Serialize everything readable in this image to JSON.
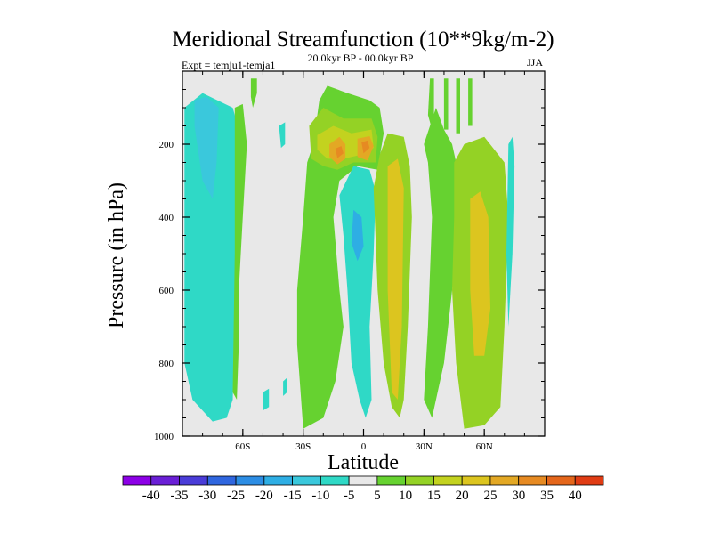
{
  "chart_data": {
    "type": "contour",
    "title": "Meridional Streamfunction (10**9kg/m-2)",
    "left_annotation": "Expt = temju1-temja1",
    "center_annotation": "20.0kyr BP - 00.0kyr BP",
    "right_annotation": "JJA",
    "xlabel": "Latitude",
    "ylabel": "Pressure (in hPa)",
    "xlim": [
      -90,
      90
    ],
    "ylim": [
      0,
      1000
    ],
    "y_inverted": true,
    "x_ticks": [
      {
        "value": -60,
        "label": "60S"
      },
      {
        "value": -30,
        "label": "30S"
      },
      {
        "value": 0,
        "label": "0"
      },
      {
        "value": 30,
        "label": "30N"
      },
      {
        "value": 60,
        "label": "60N"
      }
    ],
    "y_ticks": [
      {
        "value": 200,
        "label": "200"
      },
      {
        "value": 400,
        "label": "400"
      },
      {
        "value": 600,
        "label": "600"
      },
      {
        "value": 800,
        "label": "800"
      },
      {
        "value": 1000,
        "label": "1000"
      }
    ],
    "background_color": "#e8e8e8",
    "colorbar": {
      "levels": [
        -40,
        -35,
        -30,
        -25,
        -20,
        -15,
        -10,
        -5,
        5,
        10,
        15,
        20,
        25,
        30,
        35,
        40
      ],
      "labels": [
        "-40",
        "-35",
        "-30",
        "-25",
        "-20",
        "-15",
        "-10",
        "-5",
        "5",
        "10",
        "15",
        "20",
        "25",
        "30",
        "35",
        "40"
      ],
      "colors": [
        "#8c00e6",
        "#6a1fd6",
        "#4a3cd8",
        "#2f66df",
        "#2c8de4",
        "#2eaee4",
        "#3ac8dc",
        "#2fd9c6",
        "#e8e8e8",
        "#66d230",
        "#94d225",
        "#c3d21f",
        "#dcc51f",
        "#e3a824",
        "#e68a22",
        "#e4661b",
        "#e03c14"
      ]
    },
    "fields": [
      {
        "name": "sh-polar-negative-cell",
        "value": -10,
        "points": [
          [
            -89,
            100
          ],
          [
            -80,
            60
          ],
          [
            -65,
            100
          ],
          [
            -60,
            200
          ],
          [
            -62,
            400
          ],
          [
            -64,
            700
          ],
          [
            -65,
            900
          ],
          [
            -68,
            950
          ],
          [
            -75,
            960
          ],
          [
            -85,
            900
          ],
          [
            -89,
            800
          ]
        ]
      },
      {
        "name": "sh-polar-negative-core",
        "value": -15,
        "points": [
          [
            -84,
            80
          ],
          [
            -78,
            70
          ],
          [
            -72,
            100
          ],
          [
            -73,
            250
          ],
          [
            -75,
            350
          ],
          [
            -80,
            300
          ],
          [
            -84,
            150
          ]
        ]
      },
      {
        "name": "sh-polar-positive-strip",
        "value": 5,
        "points": [
          [
            -64,
            100
          ],
          [
            -60,
            90
          ],
          [
            -58,
            200
          ],
          [
            -60,
            400
          ],
          [
            -62,
            600
          ],
          [
            -62,
            750
          ],
          [
            -63,
            900
          ],
          [
            -65,
            880
          ],
          [
            -64,
            500
          ]
        ]
      },
      {
        "name": "tropical-positive-cell",
        "value": 5,
        "points": [
          [
            -30,
            400
          ],
          [
            -28,
            250
          ],
          [
            -25,
            200
          ],
          [
            -22,
            80
          ],
          [
            -18,
            40
          ],
          [
            -8,
            60
          ],
          [
            3,
            80
          ],
          [
            8,
            100
          ],
          [
            10,
            170
          ],
          [
            7,
            270
          ],
          [
            -3,
            260
          ],
          [
            -12,
            300
          ],
          [
            -15,
            400
          ],
          [
            -12,
            600
          ],
          [
            -10,
            700
          ],
          [
            -14,
            850
          ],
          [
            -20,
            950
          ],
          [
            -30,
            980
          ],
          [
            -33,
            750
          ],
          [
            -33,
            600
          ]
        ]
      },
      {
        "name": "tropical-positive-mid",
        "value": 10,
        "points": [
          [
            -27,
            150
          ],
          [
            -20,
            100
          ],
          [
            -10,
            130
          ],
          [
            4,
            130
          ],
          [
            7,
            180
          ],
          [
            6,
            250
          ],
          [
            -5,
            250
          ],
          [
            -13,
            270
          ],
          [
            -20,
            260
          ],
          [
            -26,
            240
          ]
        ]
      },
      {
        "name": "tropical-positive-inner",
        "value": 15,
        "points": [
          [
            -23,
            175
          ],
          [
            -15,
            150
          ],
          [
            -6,
            170
          ],
          [
            4,
            160
          ],
          [
            5,
            210
          ],
          [
            -2,
            230
          ],
          [
            -10,
            240
          ],
          [
            -18,
            240
          ],
          [
            -23,
            215
          ]
        ]
      },
      {
        "name": "jet-core-left",
        "value": 25,
        "points": [
          [
            -17,
            200
          ],
          [
            -12,
            180
          ],
          [
            -9,
            200
          ],
          [
            -9,
            240
          ],
          [
            -13,
            255
          ],
          [
            -17,
            235
          ]
        ]
      },
      {
        "name": "jet-core-left-center",
        "value": 30,
        "points": [
          [
            -14,
            212
          ],
          [
            -11,
            205
          ],
          [
            -10,
            225
          ],
          [
            -13,
            238
          ]
        ]
      },
      {
        "name": "jet-core-right",
        "value": 25,
        "points": [
          [
            -3,
            185
          ],
          [
            3,
            178
          ],
          [
            5,
            205
          ],
          [
            2,
            245
          ],
          [
            -3,
            235
          ]
        ]
      },
      {
        "name": "jet-core-right-center",
        "value": 30,
        "points": [
          [
            -1,
            195
          ],
          [
            2,
            190
          ],
          [
            3,
            210
          ],
          [
            0,
            225
          ]
        ]
      },
      {
        "name": "equatorial-negative-cell",
        "value": -10,
        "points": [
          [
            -5,
            260
          ],
          [
            3,
            270
          ],
          [
            6,
            330
          ],
          [
            5,
            500
          ],
          [
            3,
            700
          ],
          [
            4,
            900
          ],
          [
            1,
            950
          ],
          [
            -2,
            900
          ],
          [
            -6,
            800
          ],
          [
            -8,
            600
          ],
          [
            -10,
            450
          ],
          [
            -12,
            340
          ]
        ]
      },
      {
        "name": "equatorial-negative-core",
        "value": -20,
        "points": [
          [
            -5,
            380
          ],
          [
            -1,
            400
          ],
          [
            0,
            480
          ],
          [
            -3,
            520
          ],
          [
            -6,
            470
          ]
        ]
      },
      {
        "name": "nh-subtropical-cell",
        "value": 10,
        "points": [
          [
            5,
            320
          ],
          [
            8,
            230
          ],
          [
            12,
            170
          ],
          [
            20,
            180
          ],
          [
            23,
            260
          ],
          [
            24,
            400
          ],
          [
            22,
            700
          ],
          [
            20,
            900
          ],
          [
            18,
            950
          ],
          [
            14,
            920
          ],
          [
            10,
            800
          ],
          [
            7,
            600
          ]
        ]
      },
      {
        "name": "nh-subtropical-core",
        "value": 20,
        "points": [
          [
            12,
            260
          ],
          [
            17,
            240
          ],
          [
            20,
            320
          ],
          [
            19,
            700
          ],
          [
            17,
            900
          ],
          [
            14,
            880
          ],
          [
            12,
            600
          ]
        ]
      },
      {
        "name": "nh-midlat-band",
        "value": 5,
        "points": [
          [
            30,
            200
          ],
          [
            36,
            100
          ],
          [
            40,
            160
          ],
          [
            44,
            200
          ],
          [
            46,
            250
          ],
          [
            46,
            500
          ],
          [
            42,
            700
          ],
          [
            40,
            800
          ],
          [
            34,
            950
          ],
          [
            30,
            900
          ],
          [
            32,
            700
          ],
          [
            34,
            400
          ],
          [
            32,
            250
          ]
        ]
      },
      {
        "name": "nh-midlat-cell",
        "value": 10,
        "points": [
          [
            45,
            250
          ],
          [
            50,
            200
          ],
          [
            60,
            180
          ],
          [
            70,
            250
          ],
          [
            72,
            400
          ],
          [
            70,
            700
          ],
          [
            68,
            920
          ],
          [
            60,
            970
          ],
          [
            50,
            980
          ],
          [
            46,
            800
          ],
          [
            44,
            600
          ],
          [
            45,
            400
          ]
        ]
      },
      {
        "name": "nh-midlat-core",
        "value": 20,
        "points": [
          [
            53,
            350
          ],
          [
            58,
            330
          ],
          [
            62,
            400
          ],
          [
            63,
            650
          ],
          [
            60,
            780
          ],
          [
            55,
            780
          ],
          [
            53,
            600
          ]
        ]
      },
      {
        "name": "nh-polar-negative",
        "value": -10,
        "points": [
          [
            72,
            200
          ],
          [
            74,
            180
          ],
          [
            75,
            260
          ],
          [
            74,
            500
          ],
          [
            72,
            700
          ],
          [
            71,
            500
          ]
        ]
      },
      {
        "name": "nh-upper-strip-a",
        "value": 5,
        "points": [
          [
            33,
            20
          ],
          [
            35,
            20
          ],
          [
            35,
            120
          ],
          [
            34,
            160
          ],
          [
            32,
            120
          ]
        ]
      },
      {
        "name": "nh-upper-strip-b",
        "value": 5,
        "points": [
          [
            40,
            20
          ],
          [
            42,
            20
          ],
          [
            42,
            160
          ],
          [
            40,
            160
          ]
        ]
      },
      {
        "name": "nh-upper-strip-c",
        "value": 5,
        "points": [
          [
            46,
            20
          ],
          [
            48,
            20
          ],
          [
            48,
            170
          ],
          [
            46,
            170
          ]
        ]
      },
      {
        "name": "nh-upper-strip-d",
        "value": 5,
        "points": [
          [
            52,
            20
          ],
          [
            54,
            20
          ],
          [
            54,
            150
          ],
          [
            52,
            150
          ]
        ]
      },
      {
        "name": "sh-upper-strip",
        "value": 5,
        "points": [
          [
            -56,
            20
          ],
          [
            -53,
            20
          ],
          [
            -53,
            60
          ],
          [
            -55,
            100
          ],
          [
            -56,
            70
          ]
        ]
      },
      {
        "name": "small-negative-blob-a",
        "value": -10,
        "points": [
          [
            -42,
            150
          ],
          [
            -39,
            140
          ],
          [
            -39,
            200
          ],
          [
            -41,
            210
          ]
        ]
      },
      {
        "name": "small-negative-blob-b",
        "value": -10,
        "points": [
          [
            -50,
            880
          ],
          [
            -47,
            870
          ],
          [
            -47,
            920
          ],
          [
            -50,
            930
          ]
        ]
      },
      {
        "name": "small-negative-blob-c",
        "value": -10,
        "points": [
          [
            -40,
            850
          ],
          [
            -38,
            840
          ],
          [
            -38,
            880
          ],
          [
            -40,
            890
          ]
        ]
      }
    ]
  }
}
